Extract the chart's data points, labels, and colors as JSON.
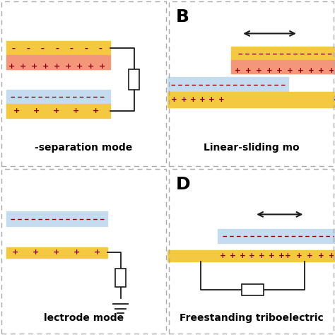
{
  "background": "#ffffff",
  "colors": {
    "yellow": "#F5C842",
    "salmon": "#F4967A",
    "blue_pale": "#C5DCF0",
    "plus_color": "#8B0000",
    "minus_color": "#8B0000",
    "wire_color": "#1a1a1a"
  },
  "mode_labels": {
    "A": "-separation mode",
    "B": "Linear-sliding mo",
    "C": "lectrode mode",
    "D": "Freestanding triboelectric"
  },
  "panel_label_fontsize": 18,
  "mode_label_fontsize": 10
}
